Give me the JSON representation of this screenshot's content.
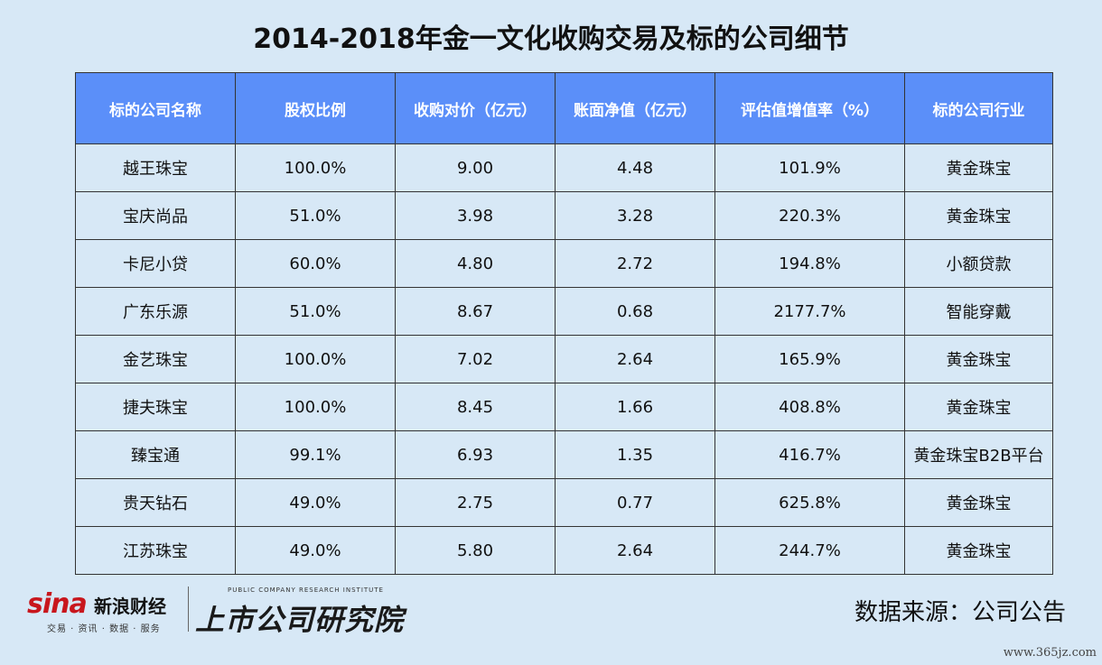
{
  "title": "2014-2018年金一文化收购交易及标的公司细节",
  "table": {
    "headers": [
      "标的公司名称",
      "股权比例",
      "收购对价（亿元）",
      "账面净值（亿元）",
      "评估值增值率（%）",
      "标的公司行业"
    ],
    "rows": [
      [
        "越王珠宝",
        "100.0%",
        "9.00",
        "4.48",
        "101.9%",
        "黄金珠宝"
      ],
      [
        "宝庆尚品",
        "51.0%",
        "3.98",
        "3.28",
        "220.3%",
        "黄金珠宝"
      ],
      [
        "卡尼小贷",
        "60.0%",
        "4.80",
        "2.72",
        "194.8%",
        "小额贷款"
      ],
      [
        "广东乐源",
        "51.0%",
        "8.67",
        "0.68",
        "2177.7%",
        "智能穿戴"
      ],
      [
        "金艺珠宝",
        "100.0%",
        "7.02",
        "2.64",
        "165.9%",
        "黄金珠宝"
      ],
      [
        "捷夫珠宝",
        "100.0%",
        "8.45",
        "1.66",
        "408.8%",
        "黄金珠宝"
      ],
      [
        "臻宝通",
        "99.1%",
        "6.93",
        "1.35",
        "416.7%",
        "黄金珠宝B2B平台"
      ],
      [
        "贵天钻石",
        "49.0%",
        "2.75",
        "0.77",
        "625.8%",
        "黄金珠宝"
      ],
      [
        "江苏珠宝",
        "49.0%",
        "5.80",
        "2.64",
        "244.7%",
        "黄金珠宝"
      ]
    ]
  },
  "logos": {
    "sina_mark": "sina",
    "sina_name": "新浪财经",
    "sina_tagline": "交易 · 资讯 · 数据 · 服务",
    "research_en": "PUBLIC COMPANY RESEARCH INSTITUTE",
    "research_cn": "上市公司研究院"
  },
  "source": "数据来源：公司公告",
  "watermark": "www.365jz.com",
  "colors": {
    "background": "#d7e8f6",
    "header_bg": "#5b8ff9",
    "sina_red": "#c8161d"
  }
}
